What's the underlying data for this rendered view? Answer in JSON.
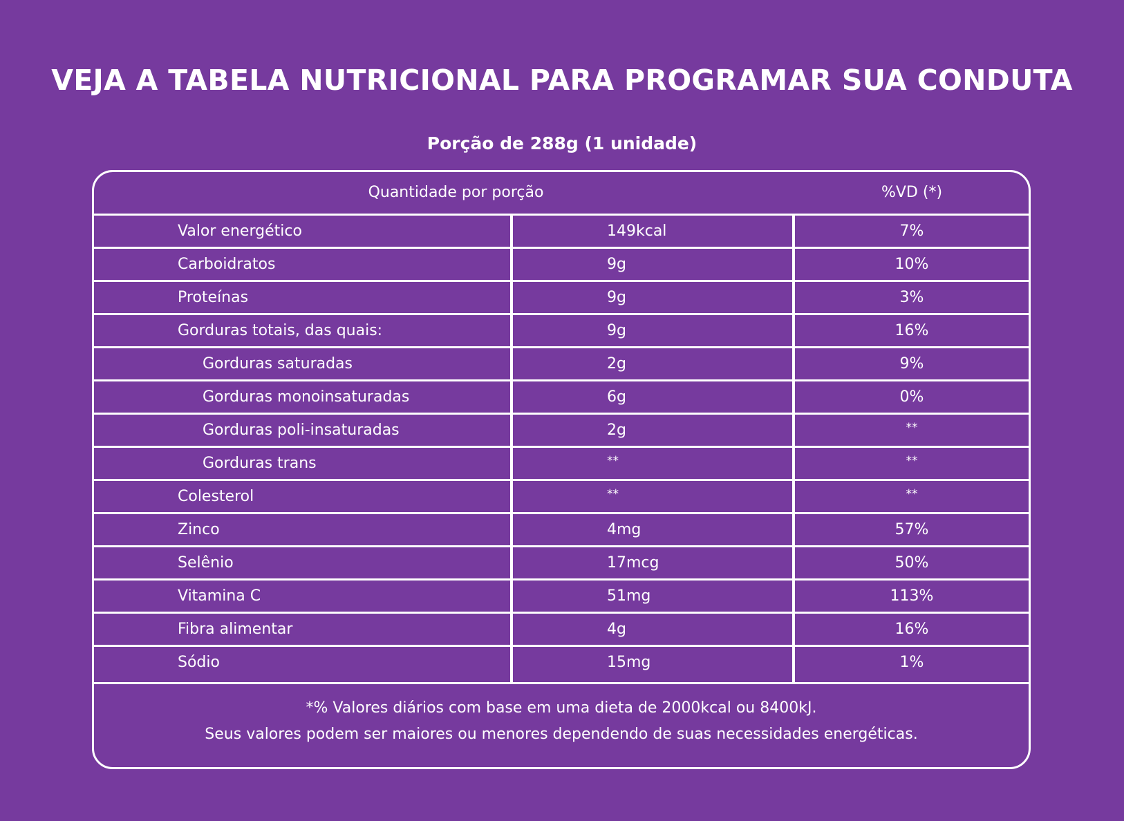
{
  "page": {
    "title": "VEJA A TABELA NUTRICIONAL PARA PROGRAMAR SUA CONDUTA",
    "serving": "Porção de 288g (1 unidade)",
    "background_color": "#763a9e",
    "text_color": "#ffffff"
  },
  "table": {
    "header_quantity": "Quantidade por porção",
    "header_dv": "%VD (*)",
    "rows": [
      {
        "name": "Valor energético",
        "quantity": "149kcal",
        "dv": "7%"
      },
      {
        "name": "Carboidratos",
        "quantity": "9g",
        "dv": "10%"
      },
      {
        "name": "Proteínas",
        "quantity": "9g",
        "dv": "3%"
      },
      {
        "name": "Gorduras totais, das quais:",
        "quantity": "9g",
        "dv": "16%"
      },
      {
        "name": "Gorduras saturadas",
        "quantity": "2g",
        "dv": "9%"
      },
      {
        "name": "Gorduras monoinsaturadas",
        "quantity": "6g",
        "dv": "0%"
      },
      {
        "name": "Gorduras poli-insaturadas",
        "quantity": "2g",
        "dv": "**"
      },
      {
        "name": "Gorduras trans",
        "quantity": "**",
        "dv": "**"
      },
      {
        "name": "Colesterol",
        "quantity": "**",
        "dv": "**"
      },
      {
        "name": "Zinco",
        "quantity": "4mg",
        "dv": "57%"
      },
      {
        "name": "Selênio",
        "quantity": "17mcg",
        "dv": "50%"
      },
      {
        "name": "Vitamina C",
        "quantity": "51mg",
        "dv": "113%"
      },
      {
        "name": "Fibra alimentar",
        "quantity": "4g",
        "dv": "16%"
      },
      {
        "name": "Sódio",
        "quantity": "15mg",
        "dv": "1%"
      }
    ],
    "footnote_line1": "*% Valores diários com base em uma dieta de 2000kcal ou 8400kJ.",
    "footnote_line2": "Seus valores podem ser maiores ou menores dependendo de suas necessidades energéticas."
  }
}
